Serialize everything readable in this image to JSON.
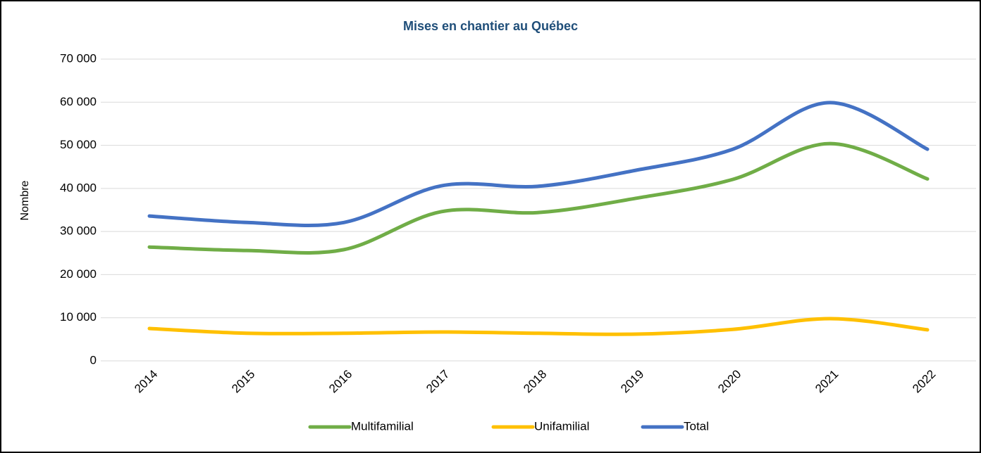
{
  "chart_data": {
    "type": "line",
    "title": "Mises en chantier au Québec",
    "y_label": "Nombre",
    "categories": [
      "2014",
      "2015",
      "2016",
      "2017",
      "2018",
      "2019",
      "2020",
      "2021",
      "2022"
    ],
    "series": [
      {
        "name": "Multifamilial",
        "color": "#70ad47",
        "values": [
          26400,
          25600,
          25800,
          34600,
          34400,
          37700,
          42100,
          50400,
          42200
        ]
      },
      {
        "name": "Unifamilial",
        "color": "#ffc000",
        "values": [
          7500,
          6400,
          6400,
          6700,
          6400,
          6200,
          7300,
          9800,
          7200
        ]
      },
      {
        "name": "Total",
        "color": "#4472c4",
        "values": [
          33600,
          32100,
          32100,
          40600,
          40500,
          44200,
          49100,
          59900,
          49100
        ]
      }
    ],
    "ylim": [
      0,
      70000
    ],
    "yticks": [
      0,
      {
        "value": 10000,
        "label": "10 000"
      },
      {
        "value": 20000,
        "label": "20 000"
      },
      {
        "value": 30000,
        "label": "30 000"
      },
      {
        "value": 40000,
        "label": "40 000"
      },
      {
        "value": 50000,
        "label": "50 000"
      },
      {
        "value": 60000,
        "label": "60 000"
      },
      {
        "value": 70000,
        "label": "70 000"
      }
    ],
    "grid": true,
    "legend": "bottom",
    "smooth": true
  }
}
